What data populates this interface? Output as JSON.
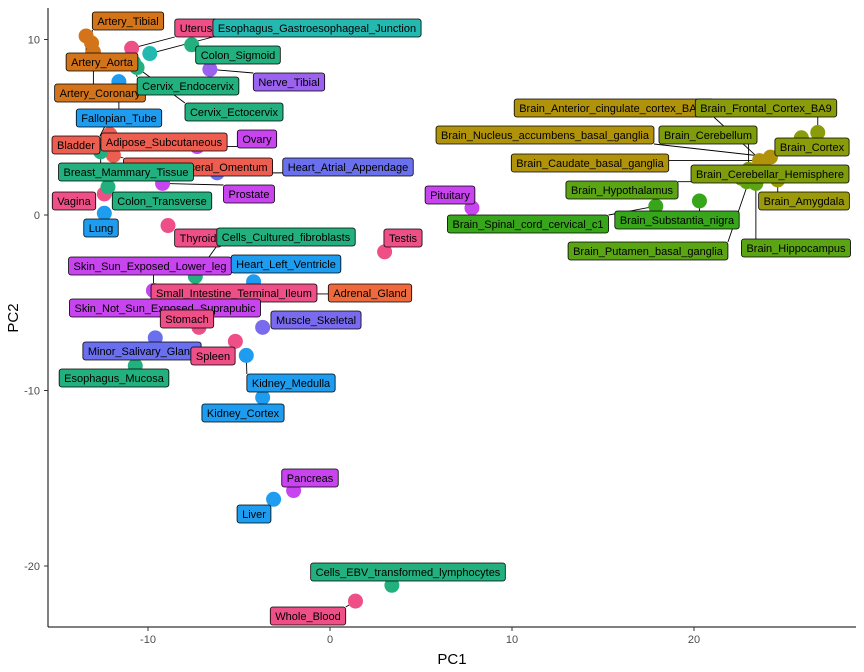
{
  "chart_data": {
    "type": "scatter",
    "title": "",
    "xlabel": "PC1",
    "ylabel": "PC2",
    "xlim": [
      -15.5,
      29
    ],
    "ylim": [
      -23.8,
      12
    ],
    "xticks": [
      -10,
      0,
      10,
      20
    ],
    "yticks": [
      10,
      0,
      -10,
      -20
    ],
    "grid": false,
    "legend": "none",
    "points": [
      {
        "label": "Artery_Tibial",
        "x": -13.1,
        "y": 9.8,
        "color": "#D4741A"
      },
      {
        "label": "Artery_Aorta",
        "x": -13.4,
        "y": 10.2,
        "color": "#D4741A"
      },
      {
        "label": "Artery_Coronary",
        "x": -13.0,
        "y": 9.3,
        "color": "#D4741A"
      },
      {
        "label": "Uterus",
        "x": -10.9,
        "y": 9.5,
        "color": "#EE4F86"
      },
      {
        "label": "Esophagus_Gastroesophageal_Junction",
        "x": -9.9,
        "y": 9.2,
        "color": "#23B8B0"
      },
      {
        "label": "Colon_Sigmoid",
        "x": -7.6,
        "y": 9.7,
        "color": "#22B07F"
      },
      {
        "label": "Cervix_Endocervix",
        "x": -10.8,
        "y": 8.7,
        "color": "#22B07F"
      },
      {
        "label": "Cervix_Ectocervix",
        "x": -10.6,
        "y": 8.4,
        "color": "#22B07F"
      },
      {
        "label": "Nerve_Tibial",
        "x": -6.6,
        "y": 8.3,
        "color": "#9A62EE"
      },
      {
        "label": "Fallopian_Tube",
        "x": -11.6,
        "y": 7.6,
        "color": "#1E9CEF"
      },
      {
        "label": "Bladder",
        "x": -12.2,
        "y": 5.4,
        "color": "#EE5E50"
      },
      {
        "label": "Adipose_Subcutaneous",
        "x": -12.1,
        "y": 4.6,
        "color": "#EE5E50"
      },
      {
        "label": "Ovary",
        "x": -7.3,
        "y": 3.9,
        "color": "#C844EE"
      },
      {
        "label": "Adipose_Visceral_Omentum",
        "x": -11.9,
        "y": 3.4,
        "color": "#EE5E50"
      },
      {
        "label": "Heart_Atrial_Appendage",
        "x": -6.2,
        "y": 2.4,
        "color": "#6A6FEE"
      },
      {
        "label": "Breast_Mammary_Tissue",
        "x": -12.6,
        "y": 3.6,
        "color": "#22B07F"
      },
      {
        "label": "Prostate",
        "x": -9.2,
        "y": 1.8,
        "color": "#C844EE"
      },
      {
        "label": "Vagina",
        "x": -12.4,
        "y": 1.2,
        "color": "#EE4F86"
      },
      {
        "label": "Colon_Transverse",
        "x": -12.2,
        "y": 1.6,
        "color": "#22B07F"
      },
      {
        "label": "Lung",
        "x": -12.4,
        "y": 0.1,
        "color": "#1E9CEF"
      },
      {
        "label": "Thyroid",
        "x": -8.9,
        "y": -0.6,
        "color": "#EE4F86"
      },
      {
        "label": "Cells_Cultured_fibroblasts",
        "x": -7.4,
        "y": -3.5,
        "color": "#22B07F"
      },
      {
        "label": "Testis",
        "x": 3.0,
        "y": -2.1,
        "color": "#EE4F86"
      },
      {
        "label": "Skin_Sun_Exposed_Lower_leg",
        "x": -9.7,
        "y": -4.3,
        "color": "#C844EE"
      },
      {
        "label": "Heart_Left_Ventricle",
        "x": -4.2,
        "y": -3.8,
        "color": "#1E9CEF"
      },
      {
        "label": "Small_Intestine_Terminal_Ileum",
        "x": -9.2,
        "y": -4.7,
        "color": "#EE4F86"
      },
      {
        "label": "Adrenal_Gland",
        "x": -1.5,
        "y": -4.5,
        "color": "#EE6A3C"
      },
      {
        "label": "Skin_Not_Sun_Exposed_Suprapubic",
        "x": -9.3,
        "y": -5.4,
        "color": "#C844EE"
      },
      {
        "label": "Stomach",
        "x": -7.2,
        "y": -6.4,
        "color": "#EE4F86"
      },
      {
        "label": "Muscle_Skeletal",
        "x": -3.7,
        "y": -6.4,
        "color": "#7A6BEE"
      },
      {
        "label": "Minor_Salivary_Gland",
        "x": -9.6,
        "y": -7.0,
        "color": "#6A6FEE"
      },
      {
        "label": "Spleen",
        "x": -5.2,
        "y": -7.2,
        "color": "#EE4F86"
      },
      {
        "label": "Esophagus_Mucosa",
        "x": -10.7,
        "y": -8.6,
        "color": "#22B07F"
      },
      {
        "label": "Kidney_Medulla",
        "x": -4.6,
        "y": -8.0,
        "color": "#1E9CEF"
      },
      {
        "label": "Kidney_Cortex",
        "x": -3.7,
        "y": -10.4,
        "color": "#1E9CEF"
      },
      {
        "label": "Pituitary",
        "x": 7.8,
        "y": 0.4,
        "color": "#C844EE"
      },
      {
        "label": "Brain_Anterior_cingulate_cortex_BA24",
        "x": 23.8,
        "y": 3.0,
        "color": "#B0930A"
      },
      {
        "label": "Brain_Frontal_Cortex_BA9",
        "x": 26.8,
        "y": 4.7,
        "color": "#8A9C0A"
      },
      {
        "label": "Brain_Cortex",
        "x": 25.9,
        "y": 4.4,
        "color": "#8A9C0A"
      },
      {
        "label": "Brain_Nucleus_accumbens_basal_ganglia",
        "x": 24.2,
        "y": 3.3,
        "color": "#B0930A"
      },
      {
        "label": "Brain_Cerebellum",
        "x": 23.0,
        "y": 2.6,
        "color": "#7E9C0C"
      },
      {
        "label": "Brain_Caudate_basal_ganglia",
        "x": 23.6,
        "y": 3.1,
        "color": "#B0930A"
      },
      {
        "label": "Brain_Cerebellar_Hemisphere",
        "x": 22.6,
        "y": 2.1,
        "color": "#7E9C0C"
      },
      {
        "label": "Brain_Amygdala",
        "x": 24.6,
        "y": 2.0,
        "color": "#9A9A0A"
      },
      {
        "label": "Brain_Hypothalamus",
        "x": 22.9,
        "y": 1.9,
        "color": "#5BA414"
      },
      {
        "label": "Brain_Hippocampus",
        "x": 23.4,
        "y": 1.8,
        "color": "#5BA414"
      },
      {
        "label": "Brain_Substantia_nigra",
        "x": 20.3,
        "y": 0.8,
        "color": "#38A61A"
      },
      {
        "label": "Brain_Spinal_cord_cervical_c1",
        "x": 17.9,
        "y": 0.5,
        "color": "#38A61A"
      },
      {
        "label": "Brain_Putamen_basal_ganglia",
        "x": 23.1,
        "y": 2.2,
        "color": "#5BA414"
      },
      {
        "label": "Pancreas",
        "x": -2.0,
        "y": -15.7,
        "color": "#C844EE"
      },
      {
        "label": "Liver",
        "x": -3.1,
        "y": -16.2,
        "color": "#1E9CEF"
      },
      {
        "label": "Cells_EBV_transformed_lymphocytes",
        "x": 3.4,
        "y": -21.1,
        "color": "#22B07F"
      },
      {
        "label": "Whole_Blood",
        "x": 1.4,
        "y": -22.0,
        "color": "#EE4F86"
      }
    ]
  }
}
